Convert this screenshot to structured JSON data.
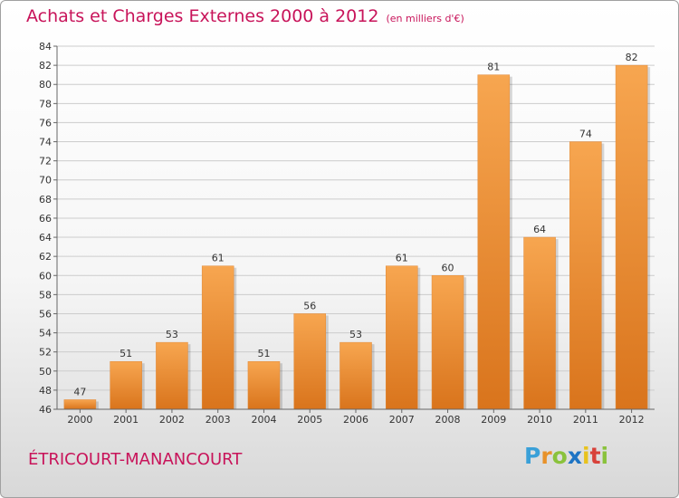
{
  "header": {
    "title": "Achats et Charges Externes 2000 à 2012",
    "subtitle": "(en milliers d'€)"
  },
  "footer": {
    "town": "ÉTRICOURT-MANANCOURT",
    "brand": "Proxiti"
  },
  "colors": {
    "title": "#c8145a",
    "bar_top": "#f7a650",
    "bar_bottom": "#d9741c",
    "grid": "#cccccc"
  },
  "chart_data": {
    "type": "bar",
    "title": "Achats et Charges Externes 2000 à 2012",
    "subtitle": "(en milliers d'€)",
    "categories": [
      "2000",
      "2001",
      "2002",
      "2003",
      "2004",
      "2005",
      "2006",
      "2007",
      "2008",
      "2009",
      "2010",
      "2011",
      "2012"
    ],
    "values": [
      47,
      51,
      53,
      61,
      51,
      56,
      53,
      61,
      60,
      81,
      64,
      74,
      82
    ],
    "ylim": [
      46,
      84
    ],
    "yticks": [
      46,
      48,
      50,
      52,
      54,
      56,
      58,
      60,
      62,
      64,
      66,
      68,
      70,
      72,
      74,
      76,
      78,
      80,
      82,
      84
    ],
    "grid": true,
    "xlabel": "",
    "ylabel": ""
  }
}
